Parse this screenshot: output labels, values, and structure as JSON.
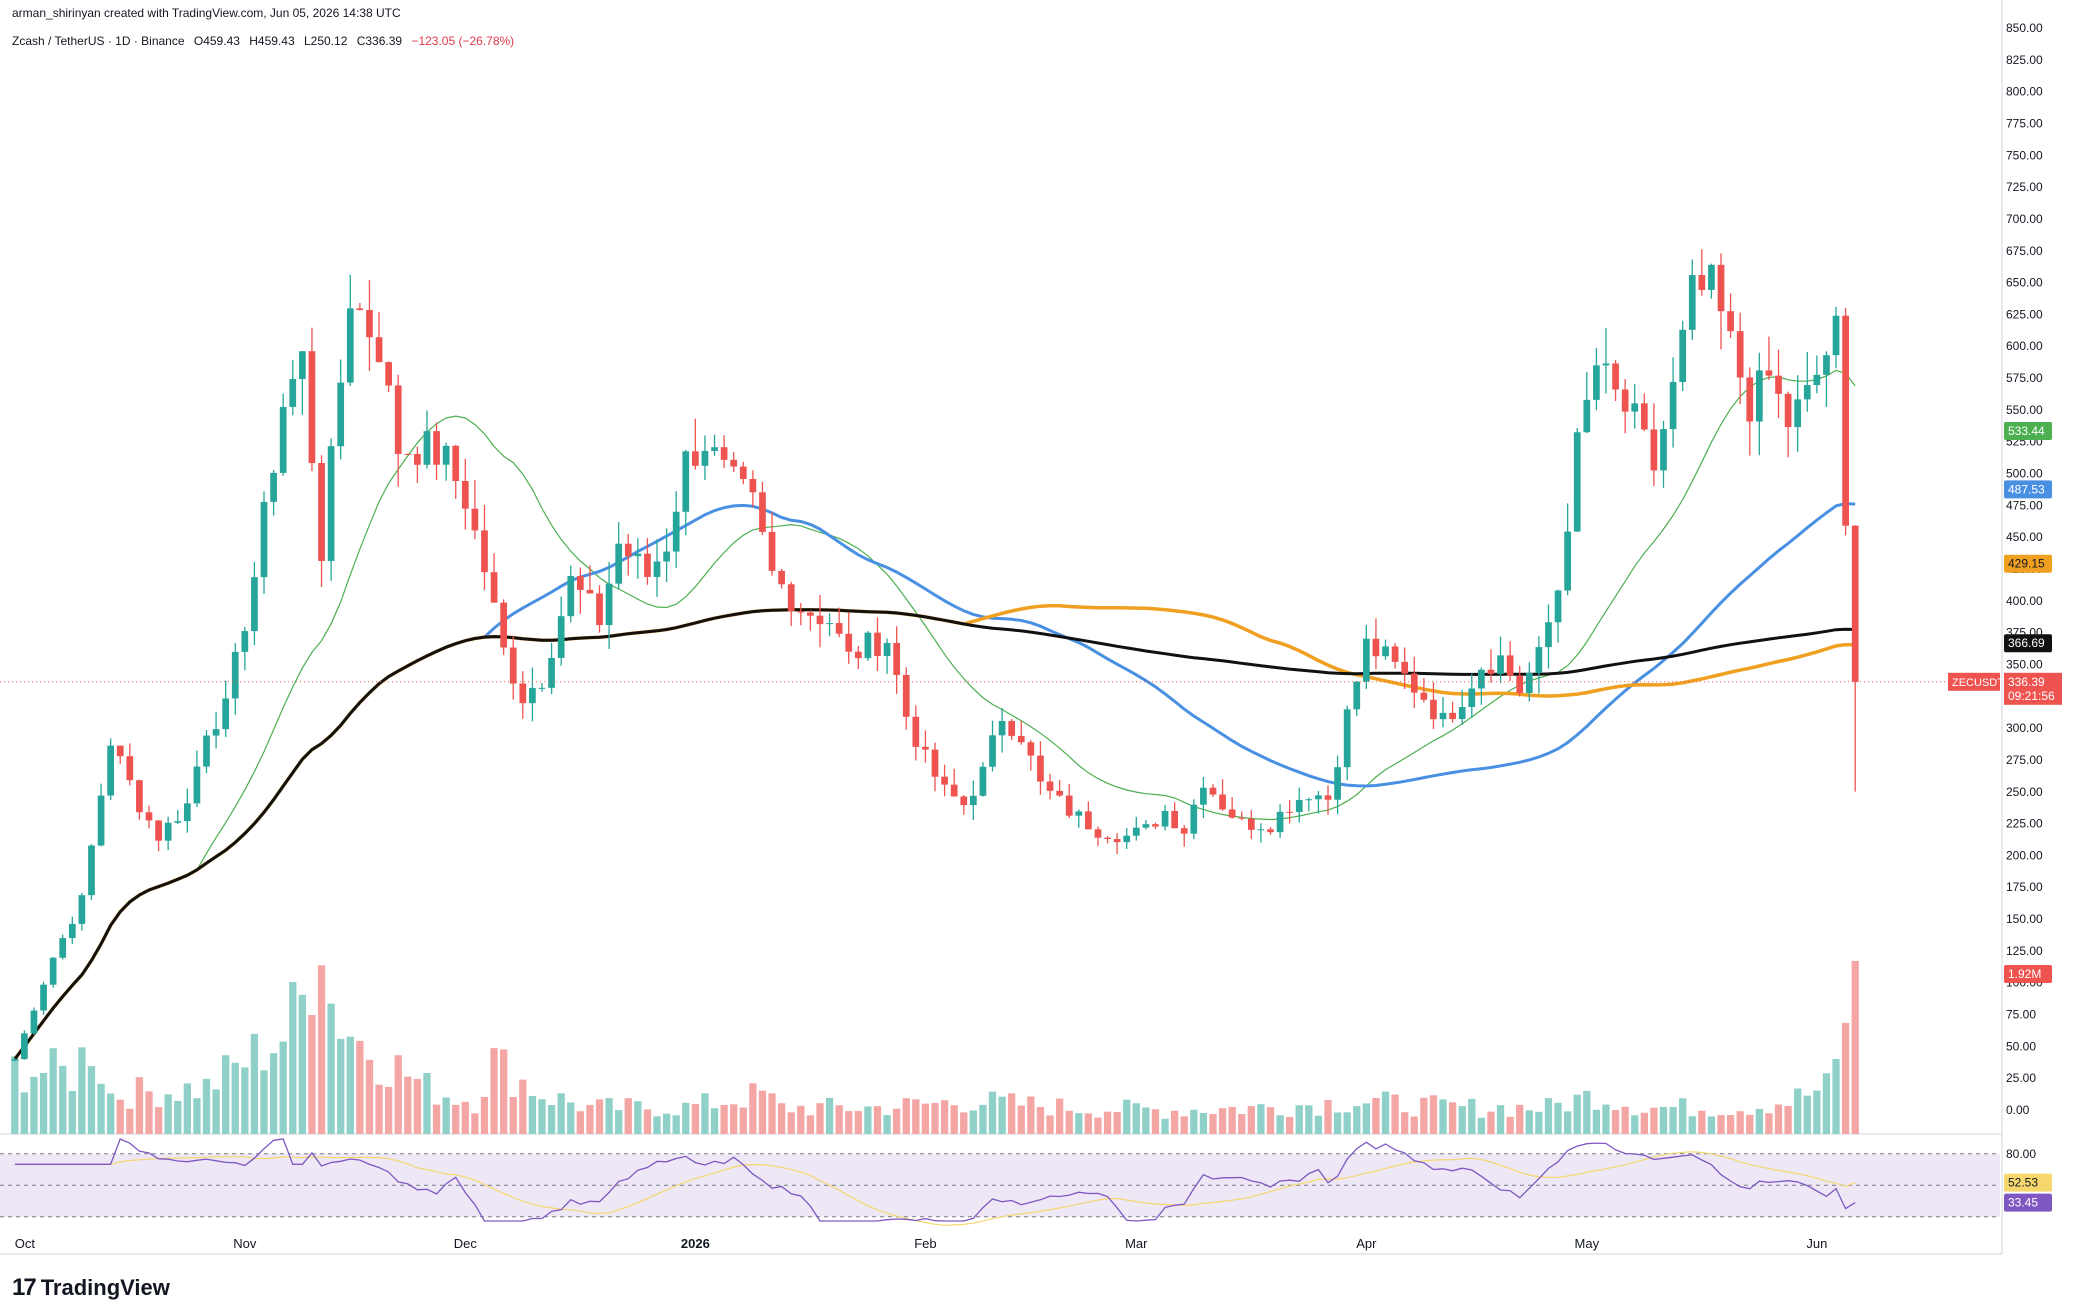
{
  "header": {
    "credit": "arman_shirinyan created with TradingView.com, Jun 05, 2026 14:38 UTC",
    "symbol": "Zcash / TetherUS · 1D · Binance",
    "open": "O459.43",
    "high": "H459.43",
    "low": "L250.12",
    "close": "C336.39",
    "change": "−123.05 (−26.78%)"
  },
  "brand": {
    "name": "TradingView",
    "logo_icon": "tradingview-logo-icon"
  },
  "colors": {
    "up": "#26a69a",
    "down": "#ef5350",
    "vol_up": "#8fd0c8",
    "vol_down": "#f4a6a4",
    "ma20": "#4caf50",
    "ma50": "#4a90e2",
    "ma100": "#f0a020",
    "ma200": "#111111",
    "rsi": "#7e57c2",
    "rsi_ma": "#f5d76e",
    "rsi_band": "#ede7f6"
  },
  "chart_data": {
    "type": "candlestick",
    "symbol": "ZECUSDT",
    "x_ticks": [
      "Oct",
      "Nov",
      "Dec",
      "2026",
      "Feb",
      "Mar",
      "Apr",
      "May",
      "Jun"
    ],
    "y_ticks": [
      "850.00",
      "825.00",
      "800.00",
      "775.00",
      "750.00",
      "725.00",
      "700.00",
      "675.00",
      "650.00",
      "625.00",
      "600.00",
      "575.00",
      "550.00",
      "525.00",
      "500.00",
      "475.00",
      "450.00",
      "425.00",
      "400.00",
      "375.00",
      "350.00",
      "325.00",
      "300.00",
      "275.00",
      "250.00",
      "225.00",
      "200.00",
      "175.00",
      "150.00",
      "125.00",
      "100.00",
      "75.00",
      "50.00",
      "25.00",
      "0.00"
    ],
    "ylim": [
      0,
      850
    ],
    "last_price": {
      "value": 336.39,
      "label": "336.39",
      "symbol": "ZECUSDT",
      "countdown": "09:21:56"
    },
    "moving_averages": [
      {
        "label": "533.44",
        "value": 533.44,
        "color": "#4caf50"
      },
      {
        "label": "487.53",
        "value": 487.53,
        "color": "#4a90e2"
      },
      {
        "label": "429.15",
        "value": 429.15,
        "color": "#f0a020"
      },
      {
        "label": "366.69",
        "value": 366.69,
        "color": "#111111"
      }
    ],
    "volume_label": "1.92M",
    "price_path": [
      [
        0,
        40
      ],
      [
        4,
        120
      ],
      [
        7,
        165
      ],
      [
        10,
        290
      ],
      [
        13,
        240
      ],
      [
        15,
        215
      ],
      [
        18,
        240
      ],
      [
        20,
        300
      ],
      [
        22,
        315
      ],
      [
        25,
        420
      ],
      [
        28,
        555
      ],
      [
        30,
        590
      ],
      [
        32,
        440
      ],
      [
        35,
        640
      ],
      [
        38,
        600
      ],
      [
        40,
        520
      ],
      [
        43,
        520
      ],
      [
        45,
        510
      ],
      [
        47,
        480
      ],
      [
        49,
        425
      ],
      [
        51,
        360
      ],
      [
        53,
        325
      ],
      [
        55,
        340
      ],
      [
        58,
        415
      ],
      [
        61,
        385
      ],
      [
        63,
        445
      ],
      [
        66,
        420
      ],
      [
        68,
        445
      ],
      [
        70,
        510
      ],
      [
        72,
        525
      ],
      [
        74,
        500
      ],
      [
        77,
        475
      ],
      [
        79,
        420
      ],
      [
        82,
        395
      ],
      [
        85,
        385
      ],
      [
        87,
        355
      ],
      [
        89,
        365
      ],
      [
        91,
        370
      ],
      [
        93,
        310
      ],
      [
        95,
        275
      ],
      [
        97,
        250
      ],
      [
        99,
        240
      ],
      [
        101,
        265
      ],
      [
        103,
        310
      ],
      [
        105,
        295
      ],
      [
        107,
        255
      ],
      [
        110,
        235
      ],
      [
        113,
        220
      ],
      [
        116,
        215
      ],
      [
        118,
        220
      ],
      [
        120,
        235
      ],
      [
        122,
        220
      ],
      [
        124,
        260
      ],
      [
        126,
        240
      ],
      [
        128,
        225
      ],
      [
        131,
        225
      ],
      [
        133,
        240
      ],
      [
        135,
        250
      ],
      [
        137,
        245
      ],
      [
        139,
        310
      ],
      [
        141,
        365
      ],
      [
        143,
        355
      ],
      [
        145,
        340
      ],
      [
        147,
        325
      ],
      [
        149,
        305
      ],
      [
        151,
        325
      ],
      [
        153,
        350
      ],
      [
        155,
        355
      ],
      [
        157,
        330
      ],
      [
        159,
        355
      ],
      [
        161,
        410
      ],
      [
        163,
        520
      ],
      [
        165,
        585
      ],
      [
        167,
        560
      ],
      [
        169,
        540
      ],
      [
        171,
        505
      ],
      [
        173,
        565
      ],
      [
        175,
        640
      ],
      [
        177,
        645
      ],
      [
        179,
        600
      ],
      [
        181,
        555
      ],
      [
        183,
        575
      ],
      [
        185,
        540
      ],
      [
        187,
        560
      ],
      [
        189,
        595
      ],
      [
        190,
        610
      ],
      [
        191,
        459
      ],
      [
        192,
        336
      ]
    ],
    "volume_path": [
      [
        0,
        50
      ],
      [
        6,
        45
      ],
      [
        8,
        70
      ],
      [
        10,
        30
      ],
      [
        20,
        35
      ],
      [
        24,
        55
      ],
      [
        28,
        75
      ],
      [
        30,
        100
      ],
      [
        31,
        135
      ],
      [
        32,
        175
      ],
      [
        33,
        100
      ],
      [
        36,
        70
      ],
      [
        40,
        50
      ],
      [
        43,
        35
      ],
      [
        45,
        30
      ],
      [
        48,
        25
      ],
      [
        50,
        55
      ],
      [
        52,
        45
      ],
      [
        55,
        30
      ],
      [
        60,
        20
      ],
      [
        70,
        20
      ],
      [
        78,
        30
      ],
      [
        80,
        20
      ],
      [
        90,
        20
      ],
      [
        100,
        25
      ],
      [
        110,
        20
      ],
      [
        120,
        18
      ],
      [
        130,
        20
      ],
      [
        140,
        25
      ],
      [
        150,
        20
      ],
      [
        160,
        20
      ],
      [
        165,
        30
      ],
      [
        170,
        20
      ],
      [
        180,
        20
      ],
      [
        185,
        25
      ],
      [
        189,
        35
      ],
      [
        190,
        50
      ],
      [
        191,
        95
      ],
      [
        192,
        110
      ]
    ],
    "rsi": {
      "band_upper": 80,
      "band_lower": 20,
      "ylim": [
        15,
        95
      ],
      "labels": [
        {
          "label": "80.00",
          "value": 80
        }
      ],
      "current": {
        "label": "33.45",
        "value": 33.45
      },
      "ma": {
        "label": "52.53",
        "value": 52.53
      }
    }
  }
}
